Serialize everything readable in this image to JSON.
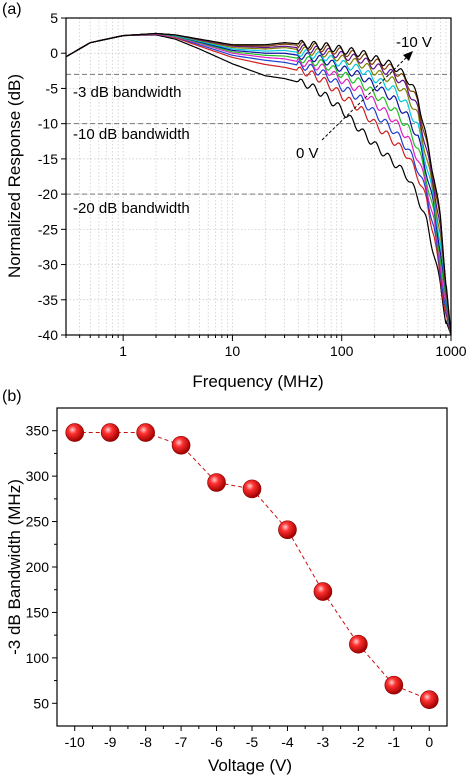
{
  "figure": {
    "panel_a_label": "(a)",
    "panel_b_label": "(b)"
  },
  "chart_data": [
    {
      "type": "line",
      "panel": "(a)",
      "xlabel": "Frequency (MHz)",
      "ylabel": "Normalized Response (dB)",
      "xscale": "log",
      "xlim": [
        0.3,
        1000
      ],
      "ylim": [
        -40,
        5
      ],
      "xticks": [
        1,
        10,
        100,
        1000
      ],
      "xtick_labels": [
        "1",
        "10",
        "100",
        "1000"
      ],
      "yticks": [
        5,
        0,
        -5,
        -10,
        -15,
        -20,
        -25,
        -30,
        -35,
        -40
      ],
      "ytick_labels": [
        "5",
        "0",
        "-5",
        "-10",
        "-15",
        "-20",
        "-25",
        "-30",
        "-35",
        "-40"
      ],
      "grid": "dotted",
      "reference_lines": [
        {
          "y": -3,
          "label": "-3 dB bandwidth"
        },
        {
          "y": -10,
          "label": "-10 dB bandwidth"
        },
        {
          "y": -20,
          "label": "-20 dB bandwidth"
        }
      ],
      "annotations": [
        {
          "text": "-10 V"
        },
        {
          "text": "0 V"
        }
      ],
      "x": [
        0.3,
        0.5,
        1,
        2,
        3,
        5,
        10,
        20,
        30,
        50,
        70,
        100,
        150,
        200,
        300,
        400,
        500,
        600,
        700,
        800,
        900,
        1000
      ],
      "series": [
        {
          "color": "#000000",
          "values": [
            -0.5,
            1.5,
            2.5,
            2.6,
            2.0,
            0.6,
            -1.5,
            -3.2,
            -3.6,
            -4.5,
            -6.0,
            -8.0,
            -11.0,
            -13.0,
            -15.5,
            -17.5,
            -20.5,
            -24.0,
            -28.5,
            -33.0,
            -38.0,
            -40
          ]
        },
        {
          "color": "#d02020",
          "values": [
            -0.5,
            1.5,
            2.5,
            2.7,
            2.2,
            1.0,
            -0.6,
            -1.6,
            -2.0,
            -2.8,
            -4.0,
            -6.0,
            -8.0,
            -10.0,
            -12.5,
            -14.5,
            -17.5,
            -21.0,
            -26.0,
            -32.0,
            -37.0,
            -40
          ]
        },
        {
          "color": "#2040d0",
          "values": [
            -0.5,
            1.5,
            2.5,
            2.7,
            2.3,
            1.2,
            -0.3,
            -1.0,
            -1.3,
            -2.0,
            -3.0,
            -4.8,
            -6.5,
            -8.5,
            -11.0,
            -13.5,
            -16.5,
            -20.0,
            -25.0,
            -31.0,
            -36.5,
            -40
          ]
        },
        {
          "color": "#e020c0",
          "values": [
            -0.5,
            1.5,
            2.5,
            2.7,
            2.3,
            1.4,
            0.0,
            -0.6,
            -0.8,
            -1.5,
            -2.2,
            -3.8,
            -5.3,
            -7.0,
            -9.5,
            -12.0,
            -15.0,
            -19.0,
            -24.0,
            -30.0,
            -36.0,
            -40
          ]
        },
        {
          "color": "#20c020",
          "values": [
            -0.5,
            1.5,
            2.5,
            2.8,
            2.4,
            1.5,
            0.2,
            -0.3,
            -0.4,
            -1.0,
            -1.6,
            -3.0,
            -4.2,
            -5.8,
            -8.0,
            -10.5,
            -13.5,
            -18.0,
            -23.0,
            -29.0,
            -35.5,
            -40
          ]
        },
        {
          "color": "#1010a0",
          "values": [
            -0.5,
            1.5,
            2.5,
            2.8,
            2.5,
            1.6,
            0.4,
            0.0,
            0.0,
            -0.5,
            -1.0,
            -2.2,
            -3.2,
            -4.6,
            -6.5,
            -9.0,
            -12.0,
            -17.0,
            -22.0,
            -28.0,
            -35.0,
            -40
          ]
        },
        {
          "color": "#00c8e0",
          "values": [
            -0.5,
            1.5,
            2.5,
            2.8,
            2.5,
            1.7,
            0.6,
            0.3,
            0.4,
            -0.1,
            -0.5,
            -1.5,
            -2.3,
            -3.6,
            -5.2,
            -7.5,
            -10.5,
            -16.0,
            -21.0,
            -27.0,
            -34.5,
            -40
          ]
        },
        {
          "color": "#808000",
          "values": [
            -0.5,
            1.5,
            2.5,
            2.8,
            2.6,
            1.8,
            0.8,
            0.6,
            0.8,
            0.3,
            0.0,
            -0.8,
            -1.5,
            -2.6,
            -4.0,
            -6.0,
            -9.0,
            -15.0,
            -20.0,
            -26.0,
            -34.0,
            -40
          ]
        },
        {
          "color": "#601090",
          "values": [
            -0.5,
            1.5,
            2.5,
            2.8,
            2.6,
            1.9,
            1.0,
            0.8,
            1.0,
            0.6,
            0.3,
            -0.3,
            -0.9,
            -1.8,
            -3.0,
            -5.0,
            -8.0,
            -14.0,
            -19.0,
            -25.0,
            -33.5,
            -40
          ]
        },
        {
          "color": "#804000",
          "values": [
            -0.5,
            1.5,
            2.5,
            2.8,
            2.6,
            2.0,
            1.1,
            1.0,
            1.3,
            1.0,
            0.7,
            0.2,
            -0.4,
            -1.2,
            -2.3,
            -4.2,
            -7.0,
            -13.0,
            -18.0,
            -24.0,
            -33.0,
            -40
          ]
        },
        {
          "color": "#000000",
          "values": [
            -0.5,
            1.5,
            2.5,
            2.8,
            2.6,
            2.0,
            1.2,
            1.2,
            1.5,
            1.2,
            1.0,
            0.5,
            0.0,
            -0.8,
            -1.8,
            -3.6,
            -6.3,
            -12.5,
            -17.5,
            -23.5,
            -32.5,
            -40
          ]
        }
      ]
    },
    {
      "type": "line",
      "panel": "(b)",
      "xlabel": "Voltage (V)",
      "ylabel": "-3 dB Bandwidth (MHz)",
      "xlim": [
        -10.5,
        0.5
      ],
      "ylim": [
        25,
        375
      ],
      "xticks": [
        -10,
        -9,
        -8,
        -7,
        -6,
        -5,
        -4,
        -3,
        -2,
        -1,
        0
      ],
      "xtick_labels": [
        "-10",
        "-9",
        "-8",
        "-7",
        "-6",
        "-5",
        "-4",
        "-3",
        "-2",
        "-1",
        "0"
      ],
      "yticks": [
        50,
        100,
        150,
        200,
        250,
        300,
        350
      ],
      "ytick_labels": [
        "50",
        "100",
        "150",
        "200",
        "250",
        "300",
        "350"
      ],
      "marker_color": "#e01010",
      "line_color": "#cc1010",
      "x": [
        -10,
        -9,
        -8,
        -7,
        -6,
        -5,
        -4,
        -3,
        -2,
        -1,
        0
      ],
      "values": [
        348,
        348,
        348,
        334,
        293,
        286,
        241,
        173,
        115,
        70,
        54
      ]
    }
  ]
}
